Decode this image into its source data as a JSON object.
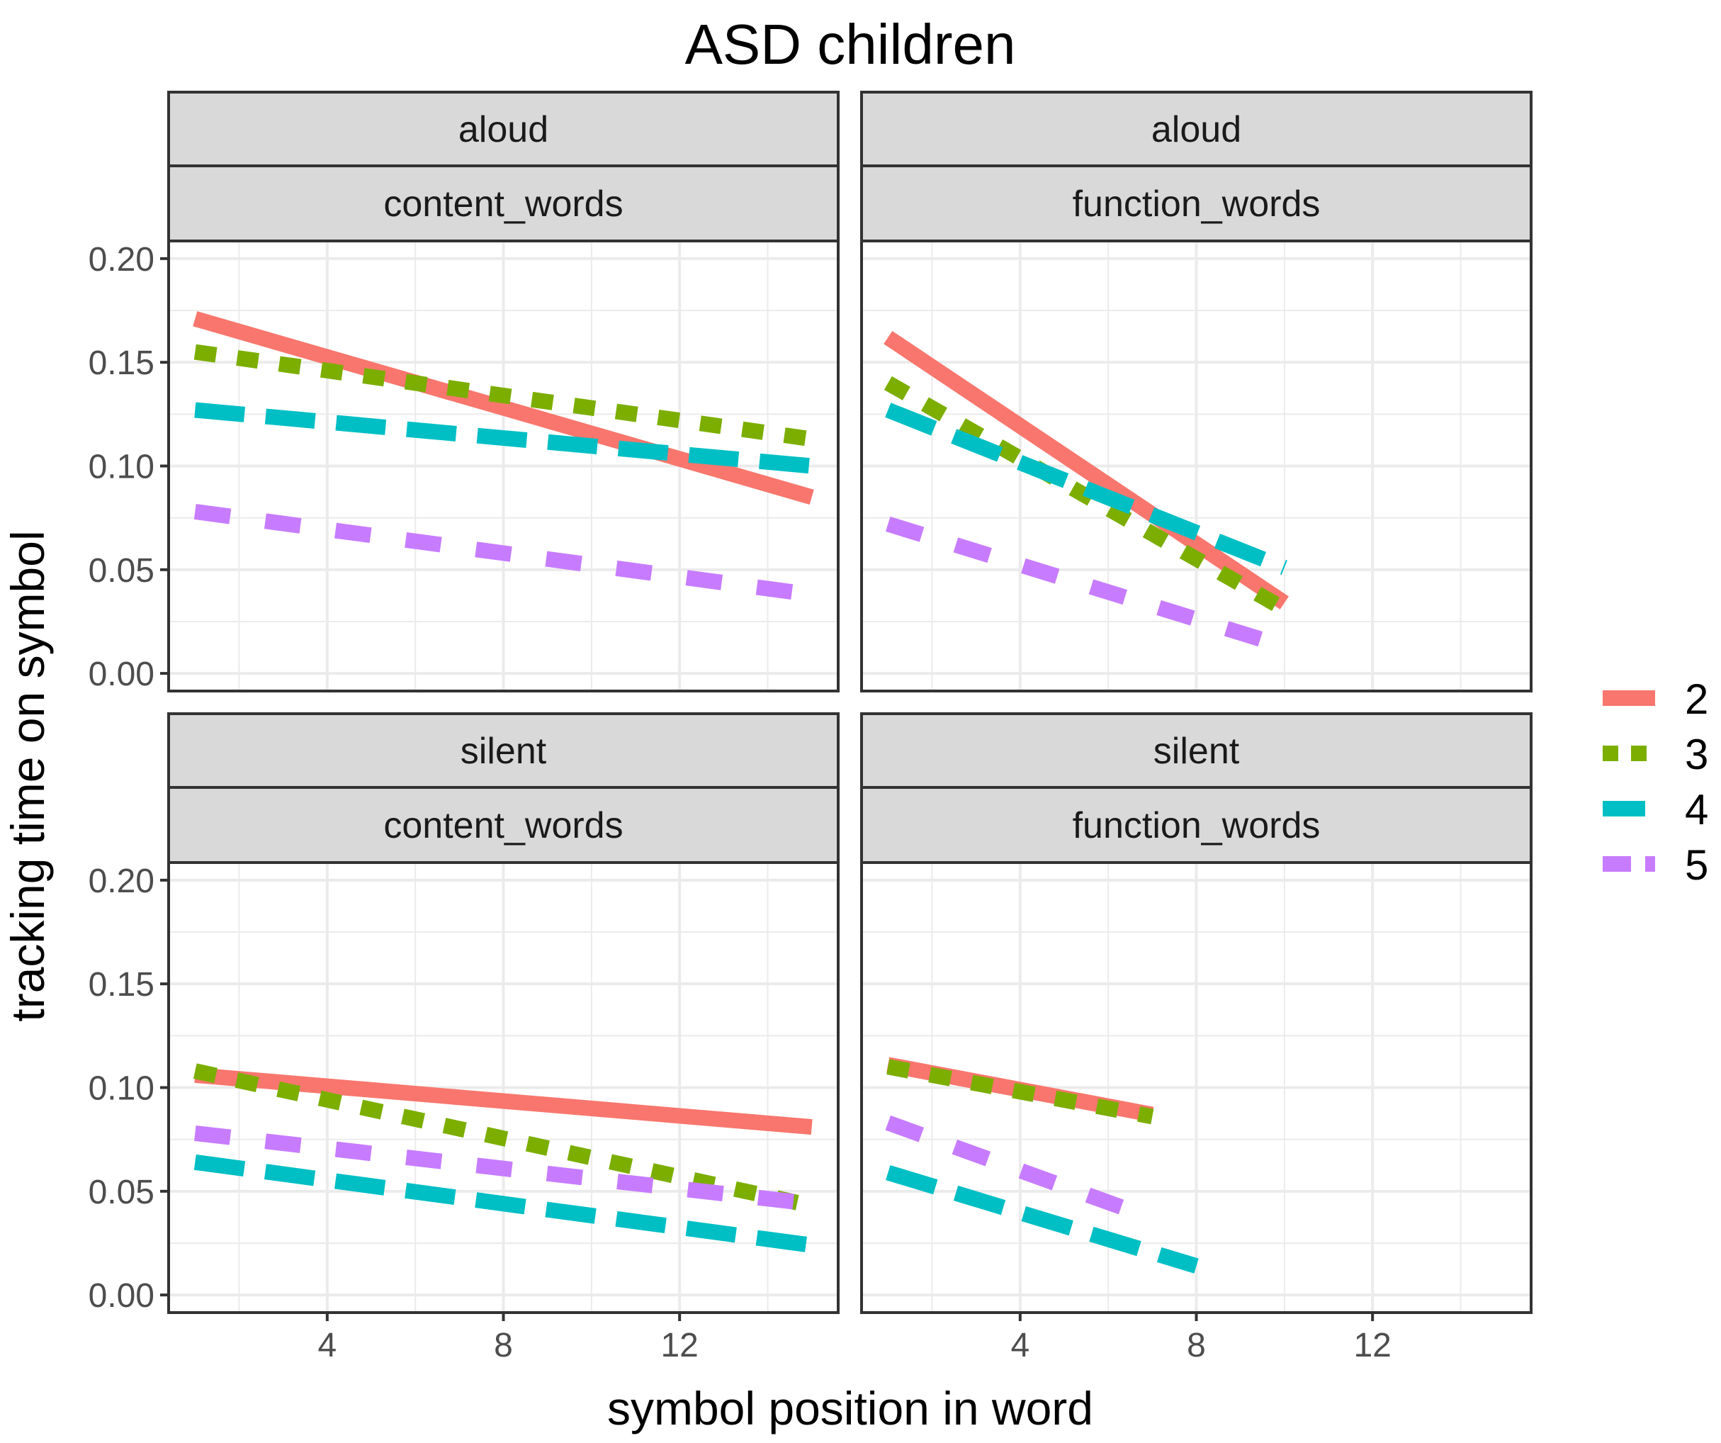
{
  "chart_data": {
    "type": "line",
    "title": "ASD children",
    "xlabel": "symbol position in word",
    "ylabel": "tracking time on symbol",
    "xlim": [
      0.4,
      15.6
    ],
    "ylim": [
      -0.0085,
      0.2085
    ],
    "x_ticks": [
      4,
      8,
      12
    ],
    "x_tick_labels": [
      "4",
      "8",
      "12"
    ],
    "y_ticks": [
      0,
      0.05,
      0.1,
      0.15,
      0.2
    ],
    "y_tick_labels": [
      "0.00",
      "0.05",
      "0.10",
      "0.15",
      "0.20"
    ],
    "grid": true,
    "legend": {
      "position": "right",
      "entries": [
        {
          "name": "2",
          "color": "#F8766D",
          "dash": "solid"
        },
        {
          "name": "3",
          "color": "#7CAE00",
          "dash": "dashed"
        },
        {
          "name": "4",
          "color": "#00BFC4",
          "dash": "longdash"
        },
        {
          "name": "5",
          "color": "#C77CFF",
          "dash": "dashed-long"
        }
      ]
    },
    "panels": [
      {
        "mode": "aloud",
        "word_type": "content_words",
        "series": [
          {
            "name": "2",
            "x": [
              1,
              15
            ],
            "y": [
              0.171,
              0.085
            ]
          },
          {
            "name": "3",
            "x": [
              1,
              15
            ],
            "y": [
              0.155,
              0.113
            ]
          },
          {
            "name": "4",
            "x": [
              1,
              15
            ],
            "y": [
              0.127,
              0.1
            ]
          },
          {
            "name": "5",
            "x": [
              1,
              15
            ],
            "y": [
              0.078,
              0.038
            ]
          }
        ]
      },
      {
        "mode": "aloud",
        "word_type": "function_words",
        "series": [
          {
            "name": "2",
            "x": [
              1,
              10
            ],
            "y": [
              0.162,
              0.034
            ]
          },
          {
            "name": "3",
            "x": [
              1,
              10
            ],
            "y": [
              0.14,
              0.031
            ]
          },
          {
            "name": "4",
            "x": [
              1,
              10
            ],
            "y": [
              0.127,
              0.051
            ]
          },
          {
            "name": "5",
            "x": [
              1,
              10
            ],
            "y": [
              0.072,
              0.013
            ]
          }
        ]
      },
      {
        "mode": "silent",
        "word_type": "content_words",
        "series": [
          {
            "name": "2",
            "x": [
              1,
              15
            ],
            "y": [
              0.106,
              0.081
            ]
          },
          {
            "name": "3",
            "x": [
              1,
              15
            ],
            "y": [
              0.108,
              0.043
            ]
          },
          {
            "name": "4",
            "x": [
              1,
              15
            ],
            "y": [
              0.064,
              0.024
            ]
          },
          {
            "name": "5",
            "x": [
              1,
              15
            ],
            "y": [
              0.078,
              0.044
            ]
          }
        ]
      },
      {
        "mode": "silent",
        "word_type": "function_words",
        "series": [
          {
            "name": "2",
            "x": [
              1,
              7
            ],
            "y": [
              0.111,
              0.087
            ]
          },
          {
            "name": "3",
            "x": [
              1,
              7
            ],
            "y": [
              0.11,
              0.086
            ]
          },
          {
            "name": "4",
            "x": [
              1,
              8
            ],
            "y": [
              0.059,
              0.014
            ]
          },
          {
            "name": "5",
            "x": [
              1,
              7
            ],
            "y": [
              0.083,
              0.037
            ]
          }
        ]
      }
    ]
  }
}
